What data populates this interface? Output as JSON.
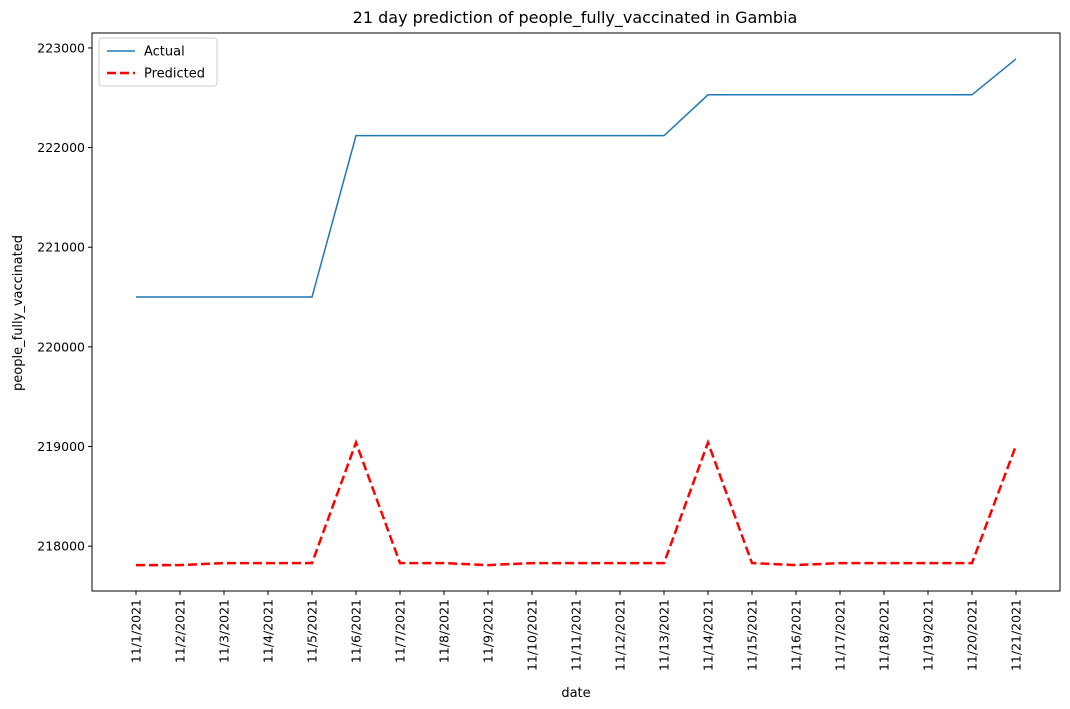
{
  "chart_data": {
    "type": "line",
    "title": "21 day prediction of people_fully_vaccinated in Gambia",
    "xlabel": "date",
    "ylabel": "people_fully_vaccinated",
    "categories": [
      "11/1/2021",
      "11/2/2021",
      "11/3/2021",
      "11/4/2021",
      "11/5/2021",
      "11/6/2021",
      "11/7/2021",
      "11/8/2021",
      "11/9/2021",
      "11/10/2021",
      "11/11/2021",
      "11/12/2021",
      "11/13/2021",
      "11/14/2021",
      "11/15/2021",
      "11/16/2021",
      "11/17/2021",
      "11/18/2021",
      "11/19/2021",
      "11/20/2021",
      "11/21/2021"
    ],
    "ylim": [
      217550,
      223150
    ],
    "yticks": [
      218000,
      219000,
      220000,
      221000,
      222000,
      223000
    ],
    "legend_position": "top-left",
    "series": [
      {
        "name": "Actual",
        "color": "#1f77b4",
        "style": "solid",
        "values": [
          220500,
          220500,
          220500,
          220500,
          220500,
          222120,
          222120,
          222120,
          222120,
          222120,
          222120,
          222120,
          222120,
          222530,
          222530,
          222530,
          222530,
          222530,
          222530,
          222530,
          222890
        ]
      },
      {
        "name": "Predicted",
        "color": "#ff0000",
        "style": "dashed",
        "values": [
          217810,
          217810,
          217830,
          217830,
          217830,
          219040,
          217830,
          217830,
          217810,
          217830,
          217830,
          217830,
          217830,
          219040,
          217830,
          217810,
          217830,
          217830,
          217830,
          217830,
          219010
        ]
      }
    ]
  }
}
